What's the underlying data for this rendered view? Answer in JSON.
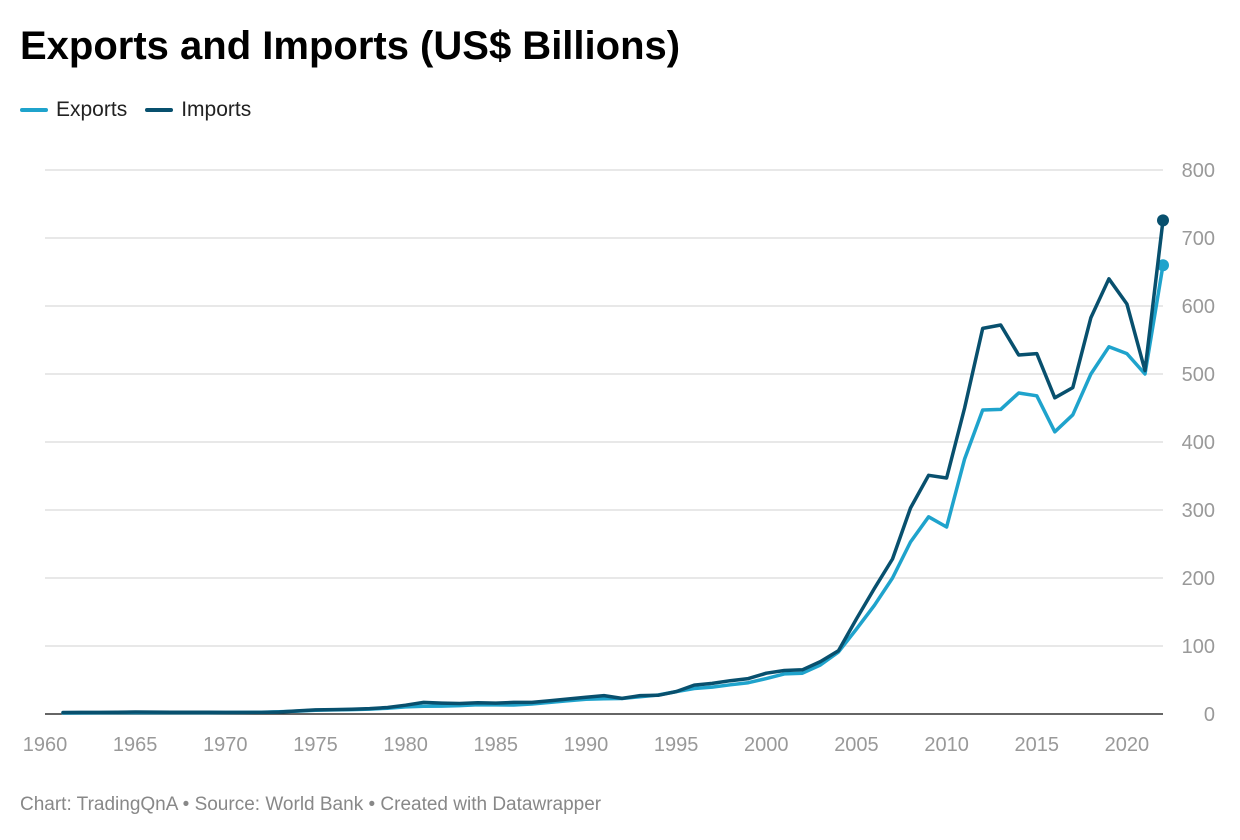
{
  "title": "Exports and Imports (US$ Billions)",
  "legend": {
    "exports": "Exports",
    "imports": "Imports"
  },
  "footer": "Chart: TradingQnA • Source: World Bank • Created with Datawrapper",
  "colors": {
    "exports": "#1fa3cc",
    "imports": "#08506e",
    "grid": "#e1e1e1",
    "axis": "#333333",
    "tick": "#999999"
  },
  "chart_data": {
    "type": "line",
    "title": "Exports and Imports (US$ Billions)",
    "xlabel": "",
    "ylabel": "",
    "grid": true,
    "legend_position": "top-left",
    "y_axis_position": "right",
    "xlim": [
      1960,
      2022
    ],
    "ylim": [
      0,
      800
    ],
    "x_ticks": [
      1960,
      1965,
      1970,
      1975,
      1980,
      1985,
      1990,
      1995,
      2000,
      2005,
      2010,
      2015,
      2020
    ],
    "y_ticks": [
      0,
      100,
      200,
      300,
      400,
      500,
      600,
      700,
      800
    ],
    "x": [
      1961,
      1962,
      1963,
      1964,
      1965,
      1966,
      1967,
      1968,
      1969,
      1970,
      1971,
      1972,
      1973,
      1974,
      1975,
      1976,
      1977,
      1978,
      1979,
      1980,
      1981,
      1982,
      1983,
      1984,
      1985,
      1986,
      1987,
      1988,
      1989,
      1990,
      1991,
      1992,
      1993,
      1994,
      1995,
      1996,
      1997,
      1998,
      1999,
      2000,
      2001,
      2002,
      2003,
      2004,
      2005,
      2006,
      2007,
      2008,
      2009,
      2010,
      2011,
      2012,
      2013,
      2014,
      2015,
      2016,
      2017,
      2018,
      2019,
      2020,
      2021,
      2022
    ],
    "series": [
      {
        "name": "Exports",
        "values": [
          1.5,
          1.6,
          1.9,
          2,
          2.1,
          2.1,
          2,
          2.1,
          2.1,
          2.2,
          2.3,
          2.6,
          3.2,
          4.3,
          5.5,
          6,
          6.5,
          7.2,
          8.5,
          10.5,
          11.5,
          11.6,
          12.4,
          13.5,
          13.4,
          13.2,
          14.7,
          17,
          19.5,
          21.7,
          22.5,
          22.8,
          25.5,
          28,
          33,
          37.5,
          39.5,
          43,
          46,
          52,
          59,
          60,
          72,
          91,
          125,
          160,
          200,
          253,
          290,
          275,
          375,
          447,
          448,
          472,
          468,
          415,
          440,
          500,
          540,
          530,
          500,
          660
        ]
      },
      {
        "name": "Imports",
        "values": [
          2.2,
          2.3,
          2.4,
          2.7,
          2.9,
          2.8,
          2.7,
          2.6,
          2.5,
          2.3,
          2.4,
          2.3,
          3,
          4.5,
          6,
          6.5,
          7,
          8,
          9.5,
          13,
          17,
          16,
          15.5,
          16.5,
          16,
          17,
          17,
          19.5,
          22,
          24.5,
          27,
          23,
          27,
          27.5,
          33,
          42.5,
          45,
          49,
          52,
          60,
          64,
          65,
          77,
          93,
          140,
          185,
          228,
          303,
          351,
          347,
          450,
          567,
          572,
          528,
          530,
          465,
          480,
          583,
          640,
          603,
          505,
          726
        ]
      }
    ]
  }
}
